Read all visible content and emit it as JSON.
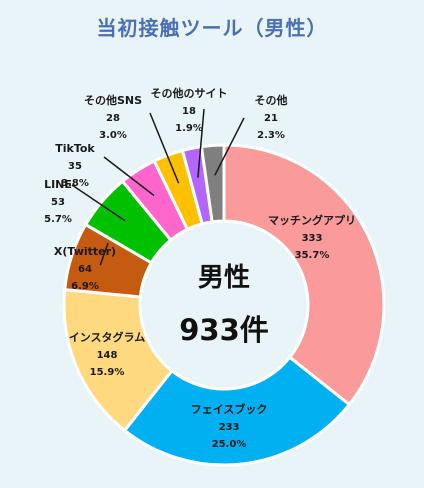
{
  "chart_data": {
    "type": "pie",
    "title": "当初接触ツール（男性）",
    "center_label": "男性",
    "center_value": "933件",
    "slices": [
      {
        "label": "マッチングアプリ",
        "count": "333",
        "percent": "35.7%",
        "value": 333,
        "color": "#fa9a9a"
      },
      {
        "label": "フェイスブック",
        "count": "233",
        "percent": "25.0%",
        "value": 233,
        "color": "#00b0f0"
      },
      {
        "label": "インスタグラム",
        "count": "148",
        "percent": "15.9%",
        "value": 148,
        "color": "#ffd97f"
      },
      {
        "label": "X(Twitter)",
        "count": "64",
        "percent": "6.9%",
        "value": 64,
        "color": "#c55a11"
      },
      {
        "label": "LINE",
        "count": "53",
        "percent": "5.7%",
        "value": 53,
        "color": "#00c000"
      },
      {
        "label": "TikTok",
        "count": "35",
        "percent": "3.8%",
        "value": 35,
        "color": "#ff66cc"
      },
      {
        "label": "その他SNS",
        "count": "28",
        "percent": "3.0%",
        "value": 28,
        "color": "#ffc000"
      },
      {
        "label": "その他のサイト",
        "count": "18",
        "percent": "1.9%",
        "value": 18,
        "color": "#b266ff"
      },
      {
        "label": "その他",
        "count": "21",
        "percent": "2.3%",
        "value": 21,
        "color": "#7f7f7f"
      }
    ]
  }
}
